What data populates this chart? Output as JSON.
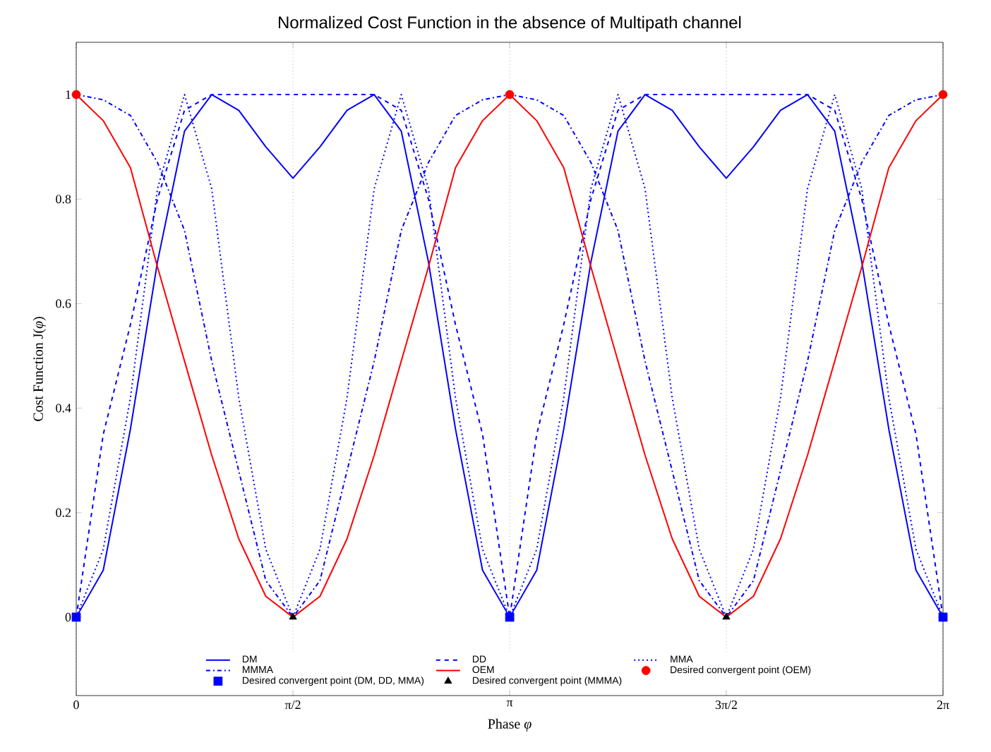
{
  "chart_data": {
    "type": "line",
    "title": "Normalized Cost Function in the absence of Multipath channel",
    "xlabel": "Phase *φ*",
    "ylabel": "Cost Function J(*φ*)",
    "x": [
      0,
      0.196,
      0.393,
      0.589,
      0.785,
      0.982,
      1.178,
      1.374,
      1.571,
      1.767,
      1.963,
      2.16,
      2.356,
      2.553,
      2.749,
      2.945,
      3.142,
      3.338,
      3.534,
      3.731,
      3.927,
      4.123,
      4.32,
      4.516,
      4.712,
      4.909,
      5.105,
      5.301,
      5.498,
      5.694,
      5.89,
      6.087,
      6.283
    ],
    "xlim": [
      0,
      6.283
    ],
    "ylim": [
      -0.15,
      1.1
    ],
    "xticks": [
      0,
      {
        "value": 1.571,
        "label": "π/2"
      },
      {
        "value": 3.142,
        "label": "π"
      },
      {
        "value": 4.712,
        "label": "3π/2"
      },
      {
        "value": 6.283,
        "label": "2π"
      }
    ],
    "yticks": [
      0,
      0.2,
      0.4,
      0.6,
      0.8,
      1
    ],
    "grid": "x",
    "legend": "bottom",
    "series": [
      {
        "name": "DM",
        "color": "#0000ff",
        "line_style": "solid",
        "values": [
          0,
          0.09,
          0.36,
          0.68,
          0.93,
          1,
          0.97,
          0.9,
          0.84,
          0.9,
          0.97,
          1,
          0.93,
          0.68,
          0.36,
          0.09,
          0,
          0.09,
          0.36,
          0.68,
          0.93,
          1,
          0.97,
          0.9,
          0.84,
          0.9,
          0.97,
          1,
          0.93,
          0.68,
          0.36,
          0.09,
          0
        ]
      },
      {
        "name": "DD",
        "color": "#0000ff",
        "line_style": "dashed",
        "values": [
          0,
          0.35,
          0.56,
          0.8,
          0.97,
          1,
          1,
          1,
          1,
          1,
          1,
          1,
          0.97,
          0.8,
          0.56,
          0.35,
          0,
          0.35,
          0.56,
          0.8,
          0.97,
          1,
          1,
          1,
          1,
          1,
          1,
          1,
          0.97,
          0.8,
          0.56,
          0.35,
          0
        ]
      },
      {
        "name": "MMA",
        "color": "#0000ff",
        "line_style": "dotted",
        "values": [
          0,
          0.13,
          0.42,
          0.82,
          1,
          0.82,
          0.42,
          0.13,
          0,
          0.13,
          0.42,
          0.82,
          1,
          0.82,
          0.42,
          0.13,
          0,
          0.13,
          0.42,
          0.82,
          1,
          0.82,
          0.42,
          0.13,
          0,
          0.13,
          0.42,
          0.82,
          1,
          0.82,
          0.42,
          0.13,
          0
        ]
      },
      {
        "name": "MMMA",
        "color": "#0000ff",
        "line_style": "dashdot",
        "values": [
          1,
          0.99,
          0.96,
          0.87,
          0.74,
          0.49,
          0.28,
          0.07,
          0,
          0.07,
          0.28,
          0.49,
          0.74,
          0.87,
          0.96,
          0.99,
          1,
          0.99,
          0.96,
          0.87,
          0.74,
          0.49,
          0.28,
          0.07,
          0,
          0.07,
          0.28,
          0.49,
          0.74,
          0.87,
          0.96,
          0.99,
          1
        ]
      },
      {
        "name": "OEM",
        "color": "#ff0000",
        "line_style": "solid",
        "values": [
          1,
          0.95,
          0.86,
          0.67,
          0.49,
          0.31,
          0.15,
          0.04,
          0,
          0.04,
          0.15,
          0.31,
          0.49,
          0.67,
          0.86,
          0.95,
          1,
          0.95,
          0.86,
          0.67,
          0.49,
          0.31,
          0.15,
          0.04,
          0,
          0.04,
          0.15,
          0.31,
          0.49,
          0.67,
          0.86,
          0.95,
          1
        ]
      },
      {
        "name": "Desired convergent point (OEM)",
        "type": "scatter",
        "marker": "circle",
        "color": "#ff0000",
        "x": [
          0,
          3.142,
          6.283
        ],
        "values": [
          1,
          1,
          1
        ]
      },
      {
        "name": "Desired convergent point (DM, DD, MMA)",
        "type": "scatter",
        "marker": "square",
        "color": "#0000ff",
        "x": [
          0,
          3.142,
          6.283
        ],
        "values": [
          0,
          0,
          0
        ]
      },
      {
        "name": "Desired convergent point (MMMA)",
        "type": "scatter",
        "marker": "triangle",
        "color": "#000000",
        "x": [
          1.571,
          4.712
        ],
        "values": [
          0,
          0
        ]
      }
    ]
  }
}
